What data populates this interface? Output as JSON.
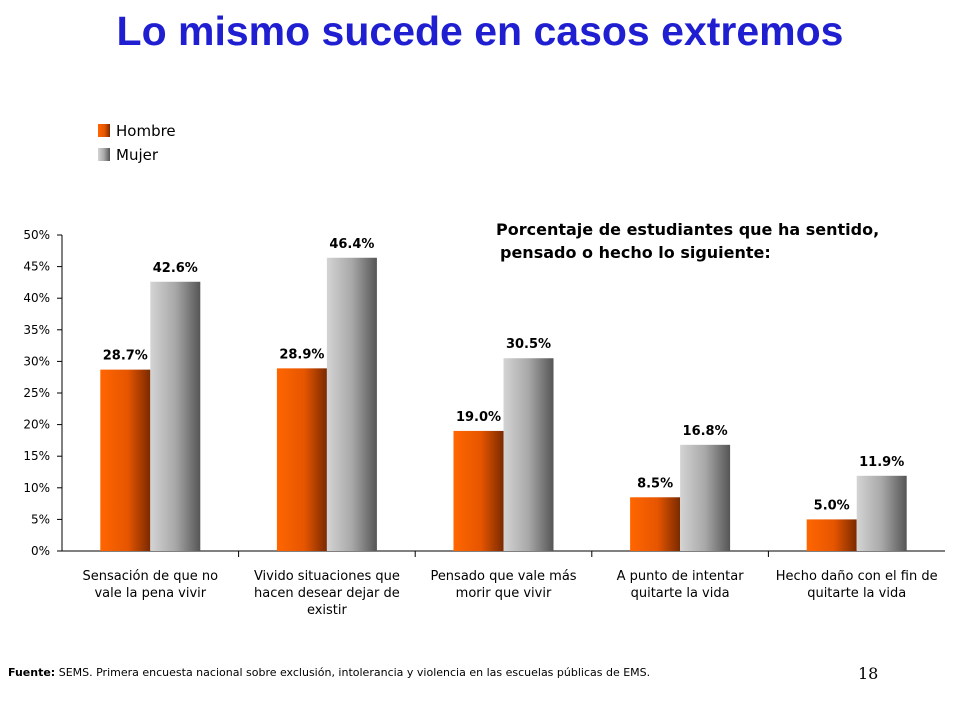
{
  "title": "Lo mismo sucede en casos extremos",
  "footer": {
    "source_label": "Fuente:",
    "source_text": "SEMS. Primera encuesta nacional sobre exclusión, intolerancia y violencia en las escuelas públicas de EMS."
  },
  "page_number": "18",
  "chart_data": {
    "type": "bar",
    "annotation": [
      "Porcentaje de estudiantes que ha sentido,",
      "pensado o hecho lo siguiente:"
    ],
    "categories": [
      [
        "Sensación de que no",
        "vale la pena vivir"
      ],
      [
        "Vivido situaciones que",
        "hacen desear dejar de",
        "existir"
      ],
      [
        "Pensado que vale más",
        "morir que vivir"
      ],
      [
        "A punto de intentar",
        "quitarte la vida"
      ],
      [
        "Hecho daño con el fin de",
        "quitarte la vida"
      ]
    ],
    "series": [
      {
        "name": "Hombre",
        "color": "#ff6600",
        "values": [
          28.7,
          28.9,
          19.0,
          8.5,
          5.0
        ],
        "labels": [
          "28.7%",
          "28.9%",
          "19.0%",
          "8.5%",
          "5.0%"
        ]
      },
      {
        "name": "Mujer",
        "color": "#b8b8b8",
        "values": [
          42.6,
          46.4,
          30.5,
          16.8,
          11.9
        ],
        "labels": [
          "42.6%",
          "46.4%",
          "30.5%",
          "16.8%",
          "11.9%"
        ]
      }
    ],
    "ylim": [
      0,
      50
    ],
    "yticks": [
      0,
      5,
      10,
      15,
      20,
      25,
      30,
      35,
      40,
      45,
      50
    ],
    "ytick_labels": [
      "0%",
      "5%",
      "10%",
      "15%",
      "20%",
      "25%",
      "30%",
      "35%",
      "40%",
      "45%",
      "50%"
    ],
    "grid": false,
    "legend_position": "top-left"
  }
}
